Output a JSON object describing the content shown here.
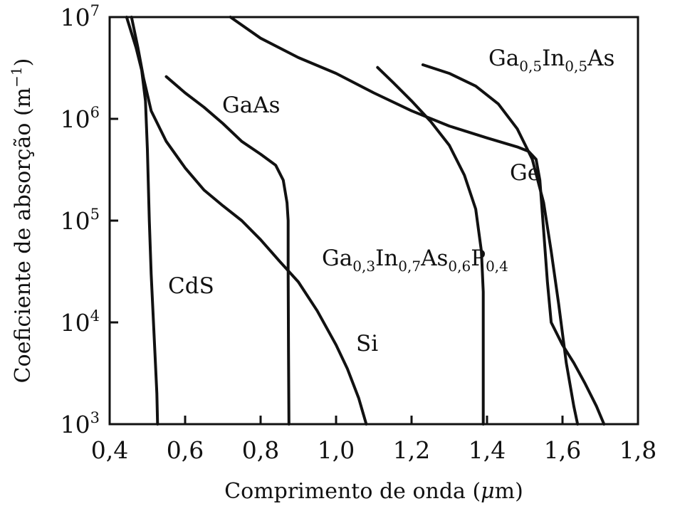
{
  "chart_data": {
    "type": "line",
    "xlabel_parts": [
      "Comprimento de onda (",
      "μ",
      "m)"
    ],
    "ylabel_parts": [
      "Coeficiente de absorção (m",
      "−1",
      ")"
    ],
    "xlim": [
      0.4,
      1.8
    ],
    "ylim": [
      1000,
      10000000
    ],
    "yscale": "log",
    "grid": false,
    "x_ticks": [
      {
        "value": 0.4,
        "label": "0,4"
      },
      {
        "value": 0.6,
        "label": "0,6"
      },
      {
        "value": 0.8,
        "label": "0,8"
      },
      {
        "value": 1.0,
        "label": "1,0"
      },
      {
        "value": 1.2,
        "label": "1,2"
      },
      {
        "value": 1.4,
        "label": "1,4"
      },
      {
        "value": 1.6,
        "label": "1,6"
      },
      {
        "value": 1.8,
        "label": "1,8"
      }
    ],
    "y_ticks": [
      {
        "value": 1000,
        "base": "10",
        "exp": "3"
      },
      {
        "value": 10000,
        "base": "10",
        "exp": "4"
      },
      {
        "value": 100000,
        "base": "10",
        "exp": "5"
      },
      {
        "value": 1000000,
        "base": "10",
        "exp": "6"
      },
      {
        "value": 10000000,
        "base": "10",
        "exp": "7"
      }
    ],
    "series": [
      {
        "name": "CdS",
        "label_parts": [
          {
            "t": "CdS"
          }
        ],
        "points": [
          [
            0.445,
            10000000
          ],
          [
            0.47,
            5000000
          ],
          [
            0.485,
            3000000
          ],
          [
            0.495,
            1500000
          ],
          [
            0.5,
            500000
          ],
          [
            0.505,
            100000
          ],
          [
            0.51,
            30000
          ],
          [
            0.52,
            5000
          ],
          [
            0.525,
            2000
          ],
          [
            0.527,
            1000
          ]
        ]
      },
      {
        "name": "GaAs",
        "label_parts": [
          {
            "t": "GaAs"
          }
        ],
        "points": [
          [
            0.55,
            2600000
          ],
          [
            0.6,
            1800000
          ],
          [
            0.65,
            1300000
          ],
          [
            0.7,
            900000
          ],
          [
            0.75,
            600000
          ],
          [
            0.8,
            450000
          ],
          [
            0.84,
            350000
          ],
          [
            0.86,
            250000
          ],
          [
            0.87,
            150000
          ],
          [
            0.873,
            100000
          ],
          [
            0.873,
            30000
          ],
          [
            0.874,
            5000
          ],
          [
            0.875,
            1000
          ]
        ]
      },
      {
        "name": "Si",
        "label_parts": [
          {
            "t": "Si"
          }
        ],
        "points": [
          [
            0.458,
            10000000
          ],
          [
            0.475,
            5000000
          ],
          [
            0.49,
            2500000
          ],
          [
            0.51,
            1200000
          ],
          [
            0.55,
            600000
          ],
          [
            0.6,
            330000
          ],
          [
            0.65,
            200000
          ],
          [
            0.7,
            140000
          ],
          [
            0.75,
            100000
          ],
          [
            0.8,
            65000
          ],
          [
            0.85,
            40000
          ],
          [
            0.9,
            25000
          ],
          [
            0.95,
            13000
          ],
          [
            1.0,
            6000
          ],
          [
            1.03,
            3500
          ],
          [
            1.06,
            1800
          ],
          [
            1.08,
            1000
          ]
        ]
      },
      {
        "name": "Ga0,3In0,7As0,6P0,4",
        "label_parts": [
          {
            "t": "Ga"
          },
          {
            "t": "0,3",
            "sub": true
          },
          {
            "t": "In"
          },
          {
            "t": "0,7",
            "sub": true
          },
          {
            "t": "As"
          },
          {
            "t": "0,6",
            "sub": true
          },
          {
            "t": "P"
          },
          {
            "t": "0,4",
            "sub": true
          }
        ],
        "points": [
          [
            1.11,
            3200000
          ],
          [
            1.15,
            2300000
          ],
          [
            1.2,
            1500000
          ],
          [
            1.25,
            950000
          ],
          [
            1.3,
            550000
          ],
          [
            1.34,
            280000
          ],
          [
            1.37,
            130000
          ],
          [
            1.385,
            50000
          ],
          [
            1.39,
            20000
          ],
          [
            1.39,
            5000
          ],
          [
            1.39,
            1000
          ]
        ]
      },
      {
        "name": "Ge",
        "label_parts": [
          {
            "t": "Ge"
          }
        ],
        "points": [
          [
            0.72,
            10000000
          ],
          [
            0.8,
            6200000
          ],
          [
            0.9,
            4000000
          ],
          [
            1.0,
            2800000
          ],
          [
            1.1,
            1800000
          ],
          [
            1.2,
            1200000
          ],
          [
            1.3,
            850000
          ],
          [
            1.4,
            650000
          ],
          [
            1.48,
            530000
          ],
          [
            1.51,
            480000
          ],
          [
            1.53,
            400000
          ],
          [
            1.54,
            250000
          ],
          [
            1.55,
            80000
          ],
          [
            1.56,
            25000
          ],
          [
            1.57,
            10000
          ],
          [
            1.6,
            6000
          ],
          [
            1.63,
            4000
          ],
          [
            1.66,
            2500
          ],
          [
            1.69,
            1500
          ],
          [
            1.71,
            1000
          ]
        ]
      },
      {
        "name": "Ga0,5In0,5As",
        "label_parts": [
          {
            "t": "Ga"
          },
          {
            "t": "0,5",
            "sub": true
          },
          {
            "t": "In"
          },
          {
            "t": "0,5",
            "sub": true
          },
          {
            "t": "As"
          }
        ],
        "points": [
          [
            1.23,
            3400000
          ],
          [
            1.3,
            2800000
          ],
          [
            1.37,
            2100000
          ],
          [
            1.43,
            1400000
          ],
          [
            1.48,
            800000
          ],
          [
            1.52,
            400000
          ],
          [
            1.55,
            150000
          ],
          [
            1.57,
            50000
          ],
          [
            1.59,
            15000
          ],
          [
            1.61,
            4000
          ],
          [
            1.63,
            1500
          ],
          [
            1.64,
            1000
          ]
        ]
      }
    ]
  }
}
